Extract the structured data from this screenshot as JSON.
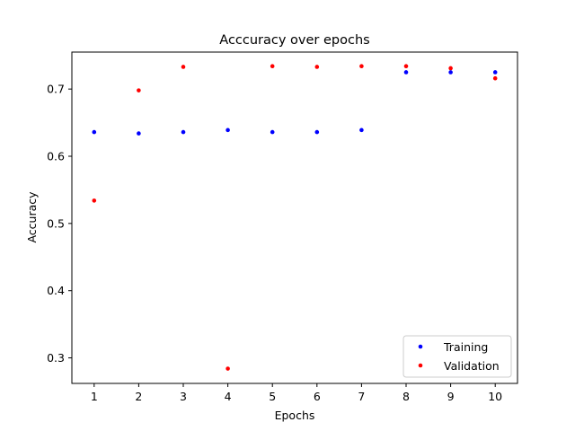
{
  "chart_data": {
    "type": "scatter",
    "title": "Acccuracy over epochs",
    "xlabel": "Epochs",
    "ylabel": "Accuracy",
    "x": [
      1,
      2,
      3,
      4,
      5,
      6,
      7,
      8,
      9,
      10
    ],
    "xlim": [
      0.5,
      10.5
    ],
    "ylim": [
      0.262,
      0.755
    ],
    "xticks": [
      1,
      2,
      3,
      4,
      5,
      6,
      7,
      8,
      9,
      10
    ],
    "yticks": [
      0.3,
      0.4,
      0.5,
      0.6,
      0.7
    ],
    "ytick_labels": [
      "0.3",
      "0.4",
      "0.5",
      "0.6",
      "0.7"
    ],
    "grid": false,
    "legend": "lower-right",
    "series": [
      {
        "name": "Training",
        "color": "#0000ff",
        "values": [
          0.636,
          0.634,
          0.636,
          0.639,
          0.636,
          0.636,
          0.639,
          0.725,
          0.725,
          0.725
        ]
      },
      {
        "name": "Validation",
        "color": "#ff0000",
        "values": [
          0.534,
          0.698,
          0.733,
          0.284,
          0.734,
          0.733,
          0.734,
          0.734,
          0.731,
          0.716
        ]
      }
    ]
  }
}
